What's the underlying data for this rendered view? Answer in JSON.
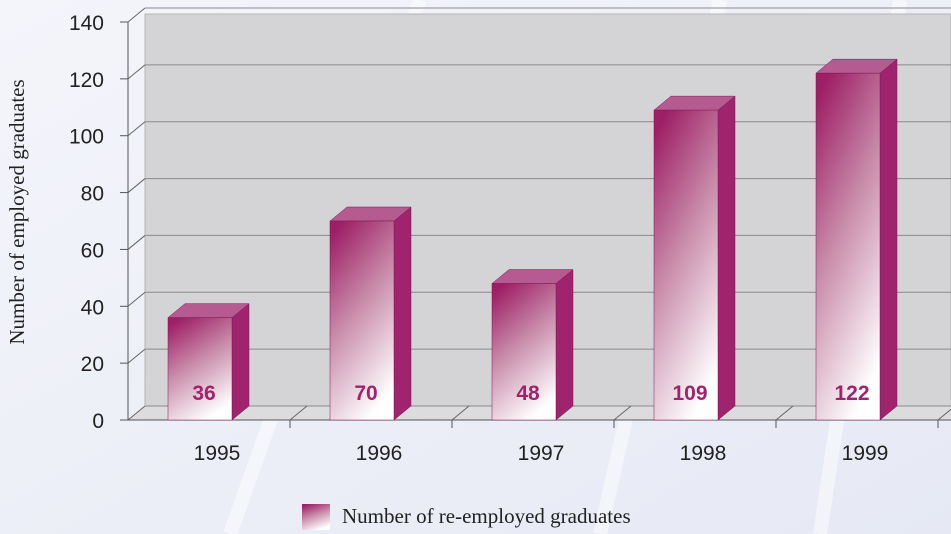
{
  "chart_data": {
    "type": "bar",
    "y_label": "Number of employed graduates",
    "categories": [
      "1995",
      "1996",
      "1997",
      "1998",
      "1999"
    ],
    "series": [
      {
        "name": "Number of re-employed graduates",
        "color": "#a0236e",
        "values": [
          36,
          70,
          48,
          109,
          122
        ]
      }
    ],
    "ylim": [
      0,
      140
    ],
    "yticks": [
      0,
      20,
      40,
      60,
      80,
      100,
      120,
      140
    ],
    "grid": true
  }
}
